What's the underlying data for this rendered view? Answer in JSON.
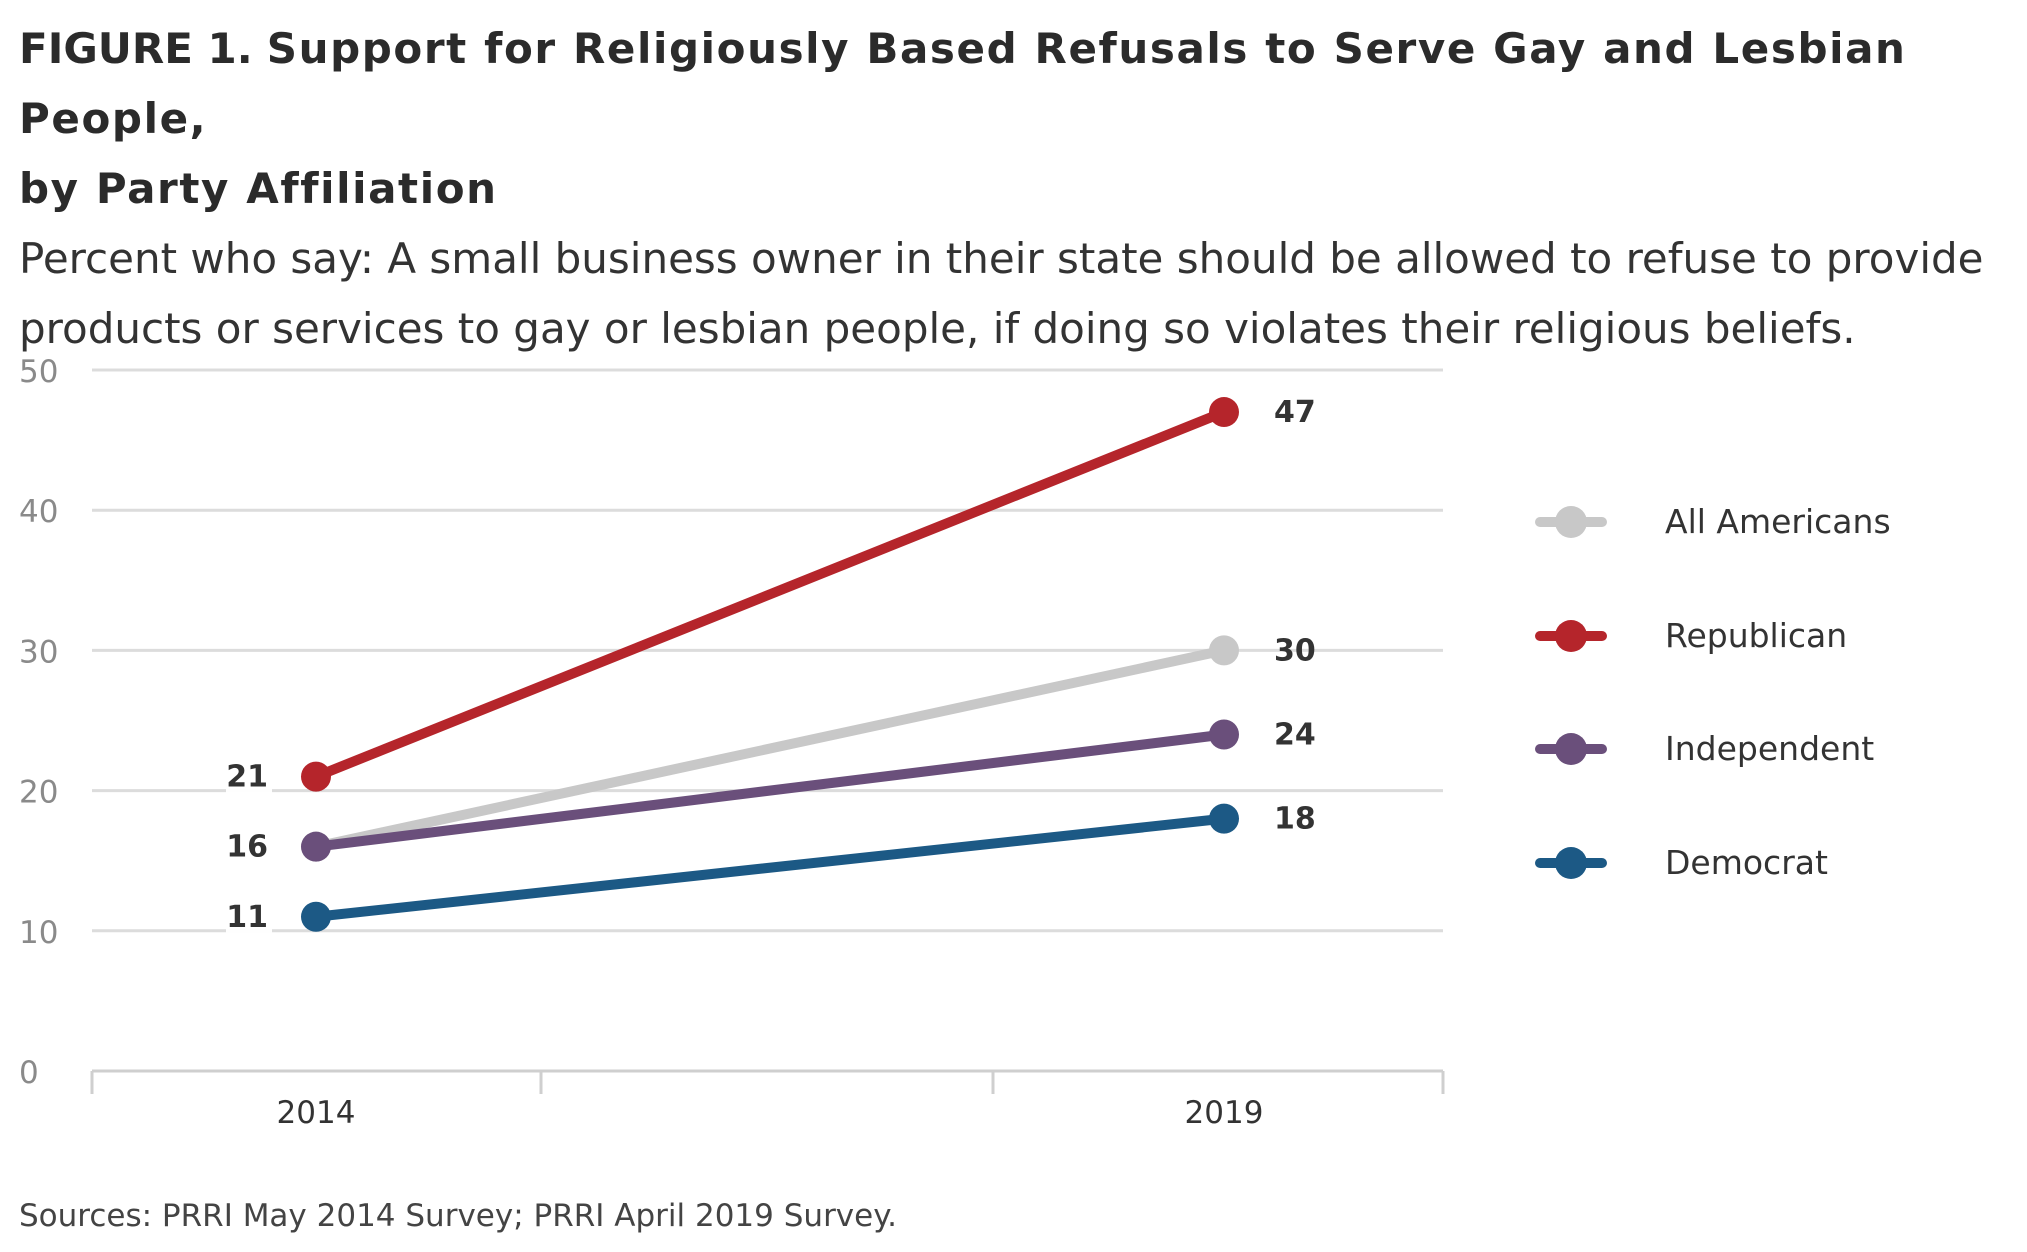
{
  "header": {
    "figure_label": "FIGURE 1.",
    "title_line1": "Support for Religiously Based Refusals to Serve Gay and Lesbian People,",
    "title_line2": "by Party Affiliation",
    "subtitle_line1": "Percent who say: A small business owner in their state should be allowed to refuse to provide",
    "subtitle_line2": "products or services to gay or lesbian people, if doing so violates their religious beliefs."
  },
  "source": "Sources: PRRI May 2014 Survey; PRRI April 2019 Survey.",
  "chart_data": {
    "type": "line",
    "title": "Support for Religiously Based Refusals to Serve Gay and Lesbian People, by Party Affiliation",
    "subtitle": "Percent who say: A small business owner in their state should be allowed to refuse to provide products or services to gay or lesbian people, if doing so violates their religious beliefs.",
    "x": [
      "2014",
      "2019"
    ],
    "ylim": [
      0,
      50
    ],
    "yticks": [
      0,
      10,
      20,
      30,
      40,
      50
    ],
    "grid": true,
    "legend_position": "right",
    "series": [
      {
        "name": "All Americans",
        "color": "#c8c8c8",
        "values": [
          16,
          30
        ],
        "labels": [
          "",
          "30"
        ]
      },
      {
        "name": "Republican",
        "color": "#b5252b",
        "values": [
          21,
          47
        ],
        "labels": [
          "21",
          "47"
        ]
      },
      {
        "name": "Independent",
        "color": "#6a4f7b",
        "values": [
          16,
          24
        ],
        "labels": [
          "16",
          "24"
        ]
      },
      {
        "name": "Democrat",
        "color": "#1c5985",
        "values": [
          11,
          18
        ],
        "labels": [
          "11",
          "18"
        ]
      }
    ]
  }
}
